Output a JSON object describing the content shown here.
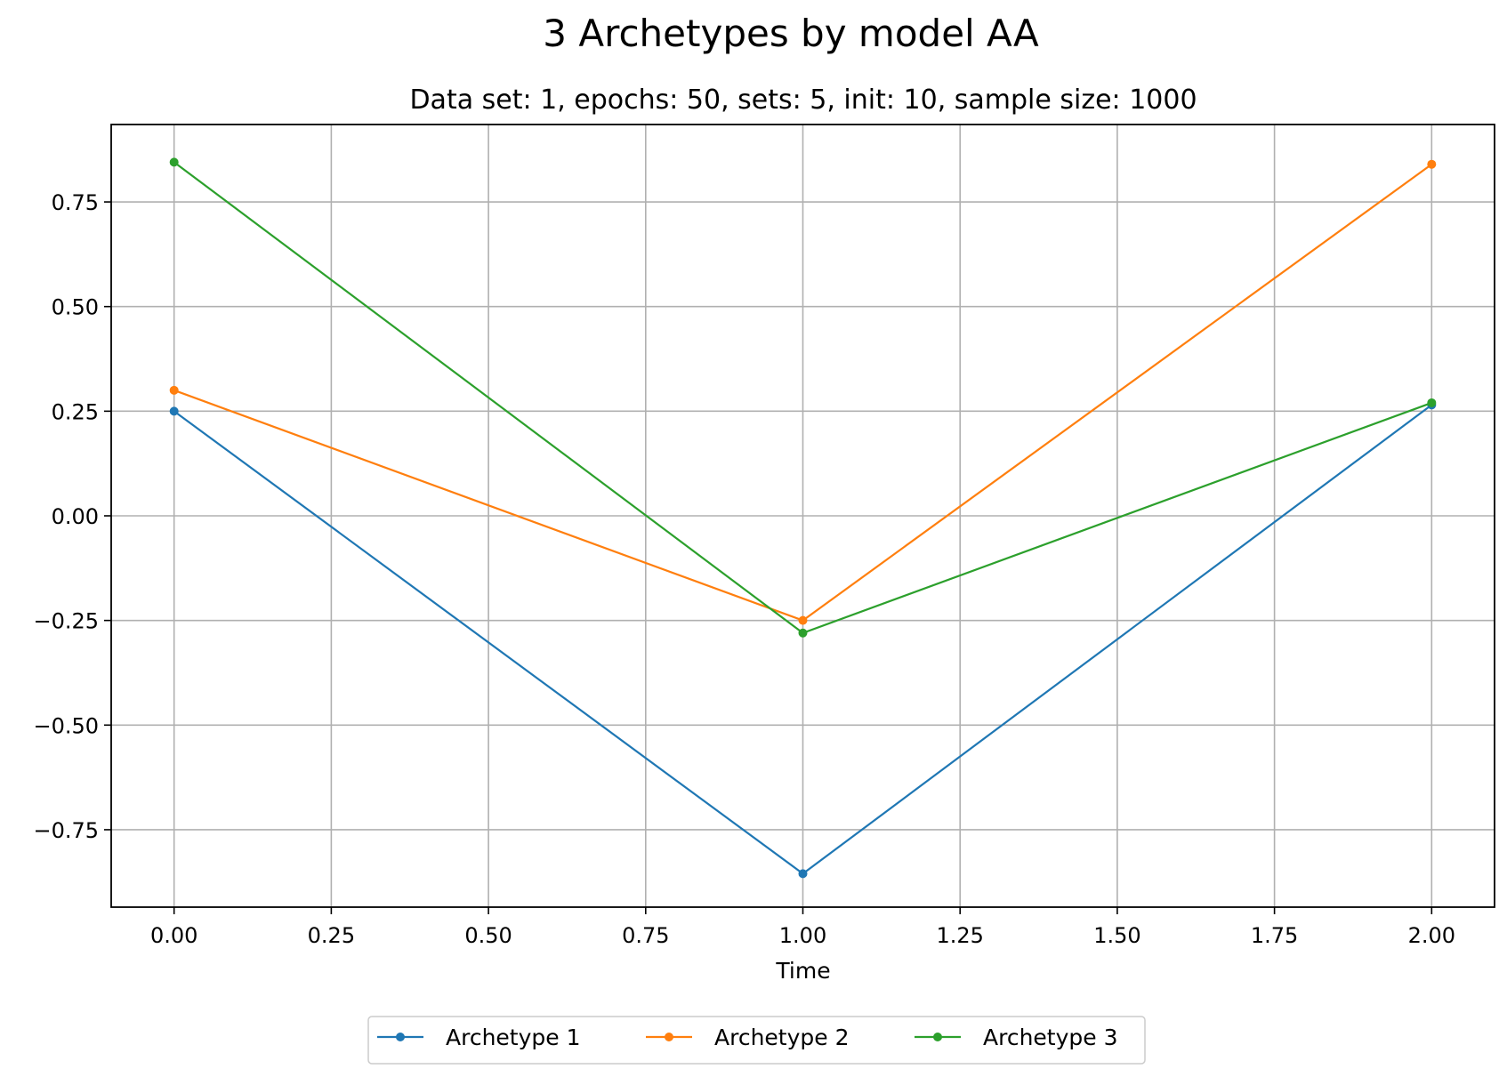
{
  "chart_data": {
    "type": "line",
    "title": "3 Archetypes by model AA",
    "subtitle": "Data set: 1, epochs: 50, sets: 5, init: 10, sample size: 1000",
    "xlabel": "Time",
    "ylabel": "",
    "x": [
      0,
      1,
      2
    ],
    "series": [
      {
        "name": "Archetype 1",
        "color": "#1f77b4",
        "values": [
          0.25,
          -0.855,
          0.265
        ]
      },
      {
        "name": "Archetype 2",
        "color": "#ff7f0e",
        "values": [
          0.3,
          -0.25,
          0.84
        ]
      },
      {
        "name": "Archetype 3",
        "color": "#2ca02c",
        "values": [
          0.845,
          -0.28,
          0.27
        ]
      }
    ],
    "xlim": [
      -0.1,
      2.1
    ],
    "ylim": [
      -0.935,
      0.935
    ],
    "x_ticks": [
      0,
      0.25,
      0.5,
      0.75,
      1.0,
      1.25,
      1.5,
      1.75,
      2.0
    ],
    "x_tick_labels": [
      "0.00",
      "0.25",
      "0.50",
      "0.75",
      "1.00",
      "1.25",
      "1.50",
      "1.75",
      "2.00"
    ],
    "y_ticks": [
      -0.75,
      -0.5,
      -0.25,
      0,
      0.25,
      0.5,
      0.75
    ],
    "y_tick_labels": [
      "−0.75",
      "−0.50",
      "−0.25",
      "0.00",
      "0.25",
      "0.50",
      "0.75"
    ],
    "grid": true,
    "legend_position": "bottom-center"
  }
}
